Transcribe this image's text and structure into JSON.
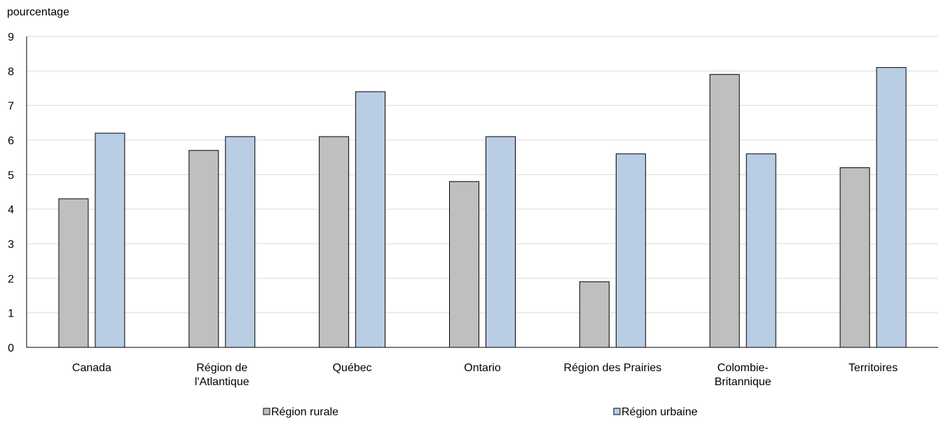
{
  "chart_data": {
    "type": "bar",
    "title": "",
    "xlabel": "",
    "ylabel": "pourcentage",
    "ylim": [
      0,
      9
    ],
    "yticks": [
      "0",
      "1",
      "2",
      "3",
      "4",
      "5",
      "6",
      "7",
      "8",
      "9"
    ],
    "grid": true,
    "legend_position": "bottom",
    "categories": [
      [
        "Canada"
      ],
      [
        "Région de",
        "l'Atlantique"
      ],
      [
        "Québec"
      ],
      [
        "Ontario"
      ],
      [
        "Région des Prairies"
      ],
      [
        "Colombie-",
        "Britannique"
      ],
      [
        "Territoires"
      ]
    ],
    "series": [
      {
        "name": "Région rurale",
        "color": "#bfbfbf",
        "values": [
          4.3,
          5.7,
          6.1,
          4.8,
          1.9,
          7.9,
          5.2
        ]
      },
      {
        "name": "Région urbaine",
        "color": "#b9cde5",
        "values": [
          6.2,
          6.1,
          7.4,
          6.1,
          5.6,
          5.6,
          8.1
        ]
      }
    ]
  }
}
